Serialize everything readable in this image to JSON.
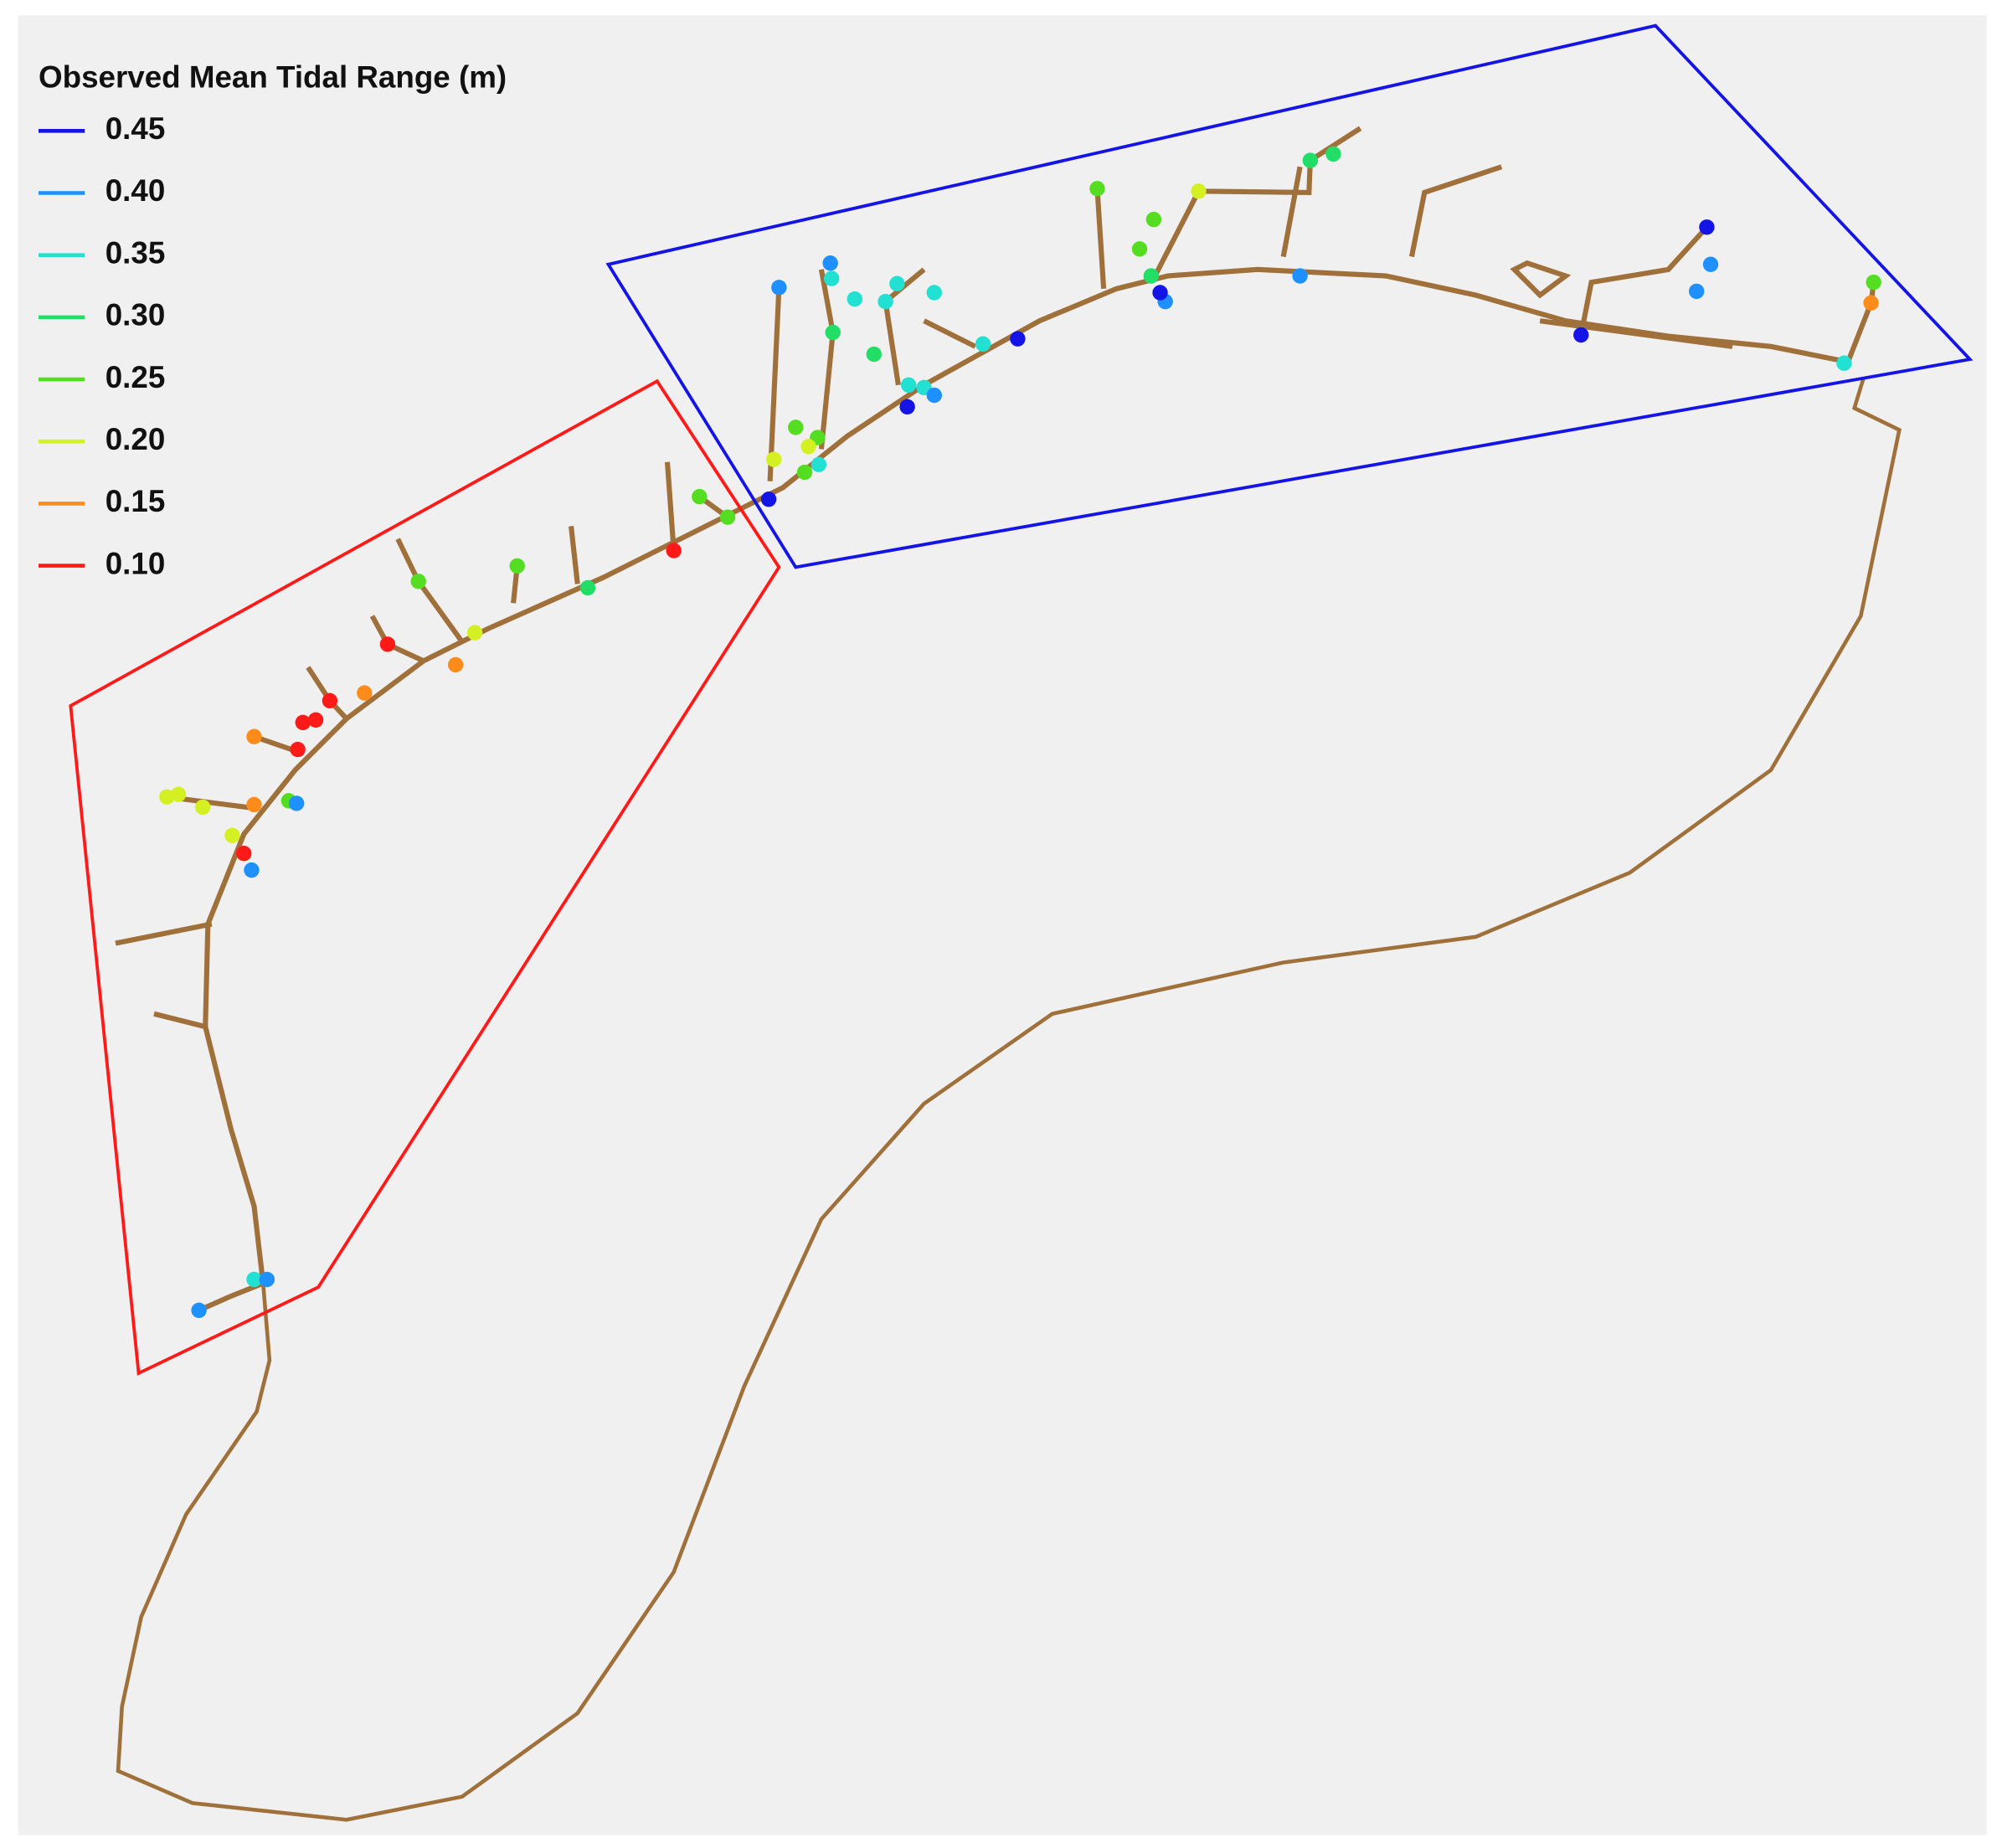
{
  "legend": {
    "title": "Observed Mean Tidal Range (m)",
    "items": [
      {
        "label": "0.45",
        "color": "#1414e6"
      },
      {
        "label": "0.40",
        "color": "#1e90ff"
      },
      {
        "label": "0.35",
        "color": "#22e0d2"
      },
      {
        "label": "0.30",
        "color": "#22dd66"
      },
      {
        "label": "0.25",
        "color": "#55dd22"
      },
      {
        "label": "0.20",
        "color": "#d4f022"
      },
      {
        "label": "0.15",
        "color": "#ff8c1a"
      },
      {
        "label": "0.10",
        "color": "#ff1a1a"
      }
    ]
  },
  "stations": [
    {
      "value": 0.45
    },
    {
      "value": 0.4
    },
    {
      "value": 0.4
    },
    {
      "value": 0.45
    },
    {
      "value": 0.4
    },
    {
      "value": 0.4
    },
    {
      "value": 0.45
    },
    {
      "value": 0.45
    },
    {
      "value": 0.35
    },
    {
      "value": 0.25
    },
    {
      "value": 0.2
    },
    {
      "value": 0.25
    },
    {
      "value": 0.25
    },
    {
      "value": 0.3
    },
    {
      "value": 0.3
    },
    {
      "value": 0.3
    },
    {
      "value": 0.25
    },
    {
      "value": 0.15
    },
    {
      "value": 0.35
    },
    {
      "value": 0.4
    },
    {
      "value": 0.4
    },
    {
      "value": 0.35
    },
    {
      "value": 0.35
    },
    {
      "value": 0.35
    },
    {
      "value": 0.35
    },
    {
      "value": 0.35
    },
    {
      "value": 0.3
    },
    {
      "value": 0.3
    },
    {
      "value": 0.35
    },
    {
      "value": 0.35
    },
    {
      "value": 0.4
    },
    {
      "value": 0.45
    },
    {
      "value": 0.25
    },
    {
      "value": 0.25
    },
    {
      "value": 0.2
    },
    {
      "value": 0.2
    },
    {
      "value": 0.25
    },
    {
      "value": 0.35
    },
    {
      "value": 0.45
    },
    {
      "value": 0.25
    },
    {
      "value": 0.25
    },
    {
      "value": 0.1
    },
    {
      "value": 0.25
    },
    {
      "value": 0.3
    },
    {
      "value": 0.25
    },
    {
      "value": 0.2
    },
    {
      "value": 0.1
    },
    {
      "value": 0.15
    },
    {
      "value": 0.15
    },
    {
      "value": 0.1
    },
    {
      "value": 0.1
    },
    {
      "value": 0.1
    },
    {
      "value": 0.15
    },
    {
      "value": 0.1
    },
    {
      "value": 0.2
    },
    {
      "value": 0.2
    },
    {
      "value": 0.2
    },
    {
      "value": 0.15
    },
    {
      "value": 0.25
    },
    {
      "value": 0.4
    },
    {
      "value": 0.2
    },
    {
      "value": 0.1
    },
    {
      "value": 0.4
    },
    {
      "value": 0.35
    },
    {
      "value": 0.4
    },
    {
      "value": 0.4
    }
  ]
}
